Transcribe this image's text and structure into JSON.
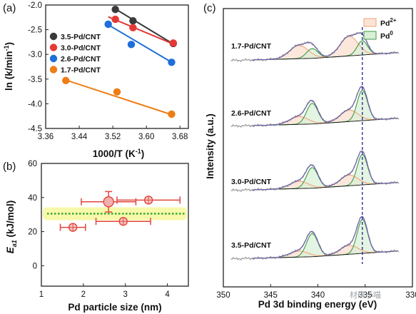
{
  "panel_labels": {
    "a": "(a)",
    "b": "(b)",
    "c": "(c)"
  },
  "watermark": "材研小喵",
  "chart_data": [
    {
      "id": "a",
      "type": "scatter",
      "xlabel": "1000/T (K",
      "xlabel_sup": "-1",
      "xlabel_close": ")",
      "ylabel": "ln (k/min",
      "ylabel_sup": "-1",
      "ylabel_close": ")",
      "xlim": [
        3.36,
        3.7
      ],
      "ylim": [
        -4.5,
        -2.0
      ],
      "xticks": [
        "3.36",
        "3.44",
        "3.52",
        "3.60",
        "3.68"
      ],
      "yticks": [
        "-2.0",
        "-2.5",
        "-3.0",
        "-3.5",
        "-4.0",
        "-4.5"
      ],
      "legend_position": "top-left",
      "series": [
        {
          "name": "3.5-Pd/CNT",
          "color": "#3a3a3a",
          "x": [
            3.526,
            3.568,
            3.664
          ],
          "y": [
            -2.09,
            -2.32,
            -2.78
          ],
          "fit": [
            [
              3.526,
              -2.08
            ],
            [
              3.664,
              -2.79
            ]
          ]
        },
        {
          "name": "3.0-Pd/CNT",
          "color": "#e53935",
          "x": [
            3.526,
            3.568,
            3.664
          ],
          "y": [
            -2.29,
            -2.46,
            -2.77
          ],
          "fit": [
            [
              3.509,
              -2.24
            ],
            [
              3.664,
              -2.79
            ]
          ]
        },
        {
          "name": "2.6-Pd/CNT",
          "color": "#1e6fd9",
          "x": [
            3.509,
            3.564,
            3.66
          ],
          "y": [
            -2.39,
            -2.8,
            -3.16
          ],
          "fit": [
            [
              3.509,
              -2.4
            ],
            [
              3.66,
              -3.16
            ]
          ]
        },
        {
          "name": "1.7-Pd/CNT",
          "color": "#ef7d16",
          "x": [
            3.408,
            3.53,
            3.66
          ],
          "y": [
            -3.53,
            -3.76,
            -4.21
          ],
          "fit": [
            [
              3.408,
              -3.52
            ],
            [
              3.66,
              -4.22
            ]
          ]
        }
      ]
    },
    {
      "id": "b",
      "type": "scatter",
      "xlabel": "Pd particle size (nm)",
      "ylabel": "E",
      "ylabel_sub": "a1",
      "ylabel_unit": " (kJ/mol)",
      "xlim": [
        1,
        4.5
      ],
      "ylim": [
        -12,
        60
      ],
      "xticks": [
        "1",
        "2",
        "3",
        "4"
      ],
      "yticks": [
        "0",
        "20",
        "40",
        "60"
      ],
      "reference_line": 30.5,
      "points": [
        {
          "x": 1.75,
          "y": 22.5,
          "xerr": 0.3,
          "yerr": 1.5,
          "marker": "circle-cross"
        },
        {
          "x": 2.6,
          "y": 37.5,
          "xerr": 0.65,
          "yerr": 6,
          "marker": "circle"
        },
        {
          "x": 2.95,
          "y": 26,
          "xerr": 0.65,
          "yerr": 1.5,
          "marker": "circle-cross"
        },
        {
          "x": 3.55,
          "y": 38.5,
          "xerr": 0.75,
          "yerr": 1.5,
          "marker": "circle-cross"
        }
      ]
    },
    {
      "id": "c",
      "type": "line",
      "xlabel": "Pd 3d binding energy (eV)",
      "ylabel": "Intensity (a.u.)",
      "xlim": [
        350,
        330
      ],
      "xticks": [
        "350",
        "345",
        "340",
        "335",
        "330"
      ],
      "reference_line_x": 335.3,
      "legend": [
        {
          "name": "Pd",
          "sup": "2+",
          "color": "#f2a57c",
          "fill": "#fbe3d6"
        },
        {
          "name": "Pd",
          "sup": "0",
          "color": "#3c9a45",
          "fill": "#d9efd6"
        }
      ],
      "spectra": [
        {
          "name": "1.7-Pd/CNT",
          "peak_pd0": 0.4,
          "peak_pd2": 0.55
        },
        {
          "name": "2.6-Pd/CNT",
          "peak_pd0": 0.85,
          "peak_pd2": 0.32
        },
        {
          "name": "3.0-Pd/CNT",
          "peak_pd0": 0.85,
          "peak_pd2": 0.3
        },
        {
          "name": "3.5-Pd/CNT",
          "peak_pd0": 0.95,
          "peak_pd2": 0.25
        }
      ]
    }
  ]
}
